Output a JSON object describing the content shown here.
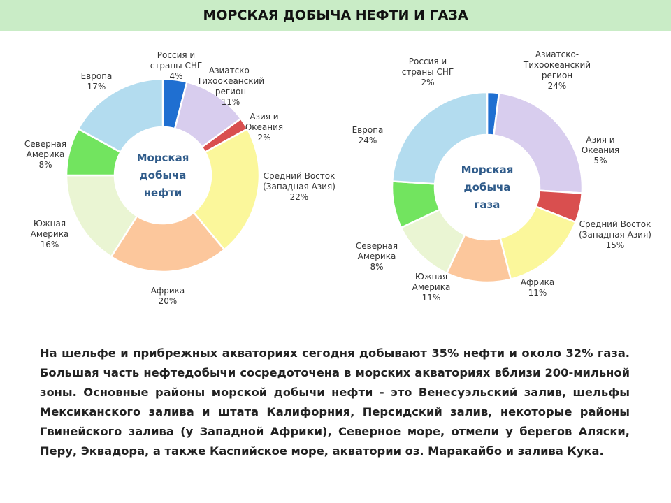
{
  "title": "МОРСКАЯ ДОБЫЧА НЕФТИ И ГАЗА",
  "chart_data": [
    {
      "type": "pie",
      "center_label": [
        "Морская",
        "добыча",
        "нефти"
      ],
      "slices": [
        {
          "label": [
            "Россия и",
            "страны СНГ"
          ],
          "pct": "4%",
          "value": 4,
          "color": "#1f6fd1"
        },
        {
          "label": [
            "Азиатско-",
            "Тихоокеанский",
            "регион"
          ],
          "pct": "11%",
          "value": 11,
          "color": "#d8cdee"
        },
        {
          "label": [
            "Азия и",
            "Океания"
          ],
          "pct": "2%",
          "value": 2,
          "color": "#d94f4f"
        },
        {
          "label": [
            "Средний Восток",
            "(Западная Азия)"
          ],
          "pct": "22%",
          "value": 22,
          "color": "#fbf79b"
        },
        {
          "label": [
            "Африка"
          ],
          "pct": "20%",
          "value": 20,
          "color": "#fcc79c"
        },
        {
          "label": [
            "Южная",
            "Америка"
          ],
          "pct": "16%",
          "value": 16,
          "color": "#eaf5d3"
        },
        {
          "label": [
            "Северная",
            "Америка"
          ],
          "pct": "8%",
          "value": 8,
          "color": "#72e45f"
        },
        {
          "label": [
            "Европа"
          ],
          "pct": "17%",
          "value": 17,
          "color": "#b3dcef"
        }
      ]
    },
    {
      "type": "pie",
      "center_label": [
        "Морская",
        "добыча",
        "газа"
      ],
      "slices": [
        {
          "label": [
            "Россия и",
            "страны СНГ"
          ],
          "pct": "2%",
          "value": 2,
          "color": "#1f6fd1"
        },
        {
          "label": [
            "Азиатско-",
            "Тихоокеанский",
            "регион"
          ],
          "pct": "24%",
          "value": 24,
          "color": "#d8cdee"
        },
        {
          "label": [
            "Азия и",
            "Океания"
          ],
          "pct": "5%",
          "value": 5,
          "color": "#d94f4f"
        },
        {
          "label": [
            "Средний Восток",
            "(Западная Азия)"
          ],
          "pct": "15%",
          "value": 15,
          "color": "#fbf79b"
        },
        {
          "label": [
            "Африка"
          ],
          "pct": "11%",
          "value": 11,
          "color": "#fcc79c"
        },
        {
          "label": [
            "Южная",
            "Америка"
          ],
          "pct": "11%",
          "value": 11,
          "color": "#eaf5d3"
        },
        {
          "label": [
            "Северная",
            "Америка"
          ],
          "pct": "8%",
          "value": 8,
          "color": "#72e45f"
        },
        {
          "label": [
            "Европа"
          ],
          "pct": "24%",
          "value": 24,
          "color": "#b3dcef"
        }
      ]
    }
  ],
  "paragraph": "На шельфе и прибрежных акваториях сегодня добывают 35% нефти и около 32% газа. Большая часть нефтедобычи сосредоточена в морских акваториях вблизи 200-мильной зоны. Основные районы морской добычи нефти - это Венесуэльский залив, шельфы Мексиканского залива и штата Калифорния, Персидский залив, некоторые районы Гвинейского залива (у Западной Африки), Северное море, отмели у берегов Аляски, Перу, Эквадора, а также Каспийское море, акватории оз. Маракайбо и залива Кука."
}
